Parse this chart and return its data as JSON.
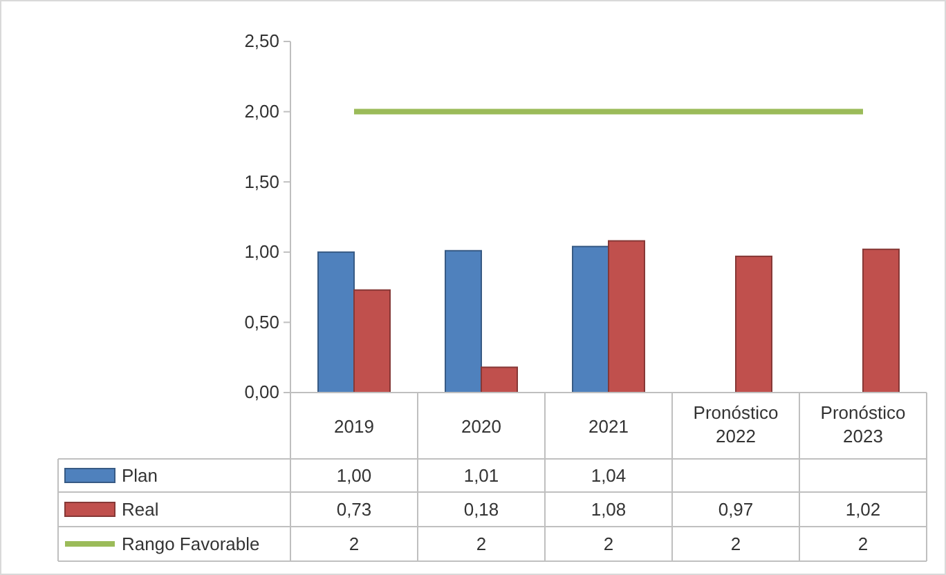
{
  "chart_data": {
    "type": "bar",
    "categories": [
      "2019",
      "2020",
      "2021",
      "Pronóstico 2022",
      "Pronóstico 2023"
    ],
    "series": [
      {
        "name": "Plan",
        "color": "#4f81bd",
        "values": [
          1.0,
          1.01,
          1.04,
          null,
          null
        ],
        "value_labels": [
          "1,00",
          "1,01",
          "1,04",
          null,
          null
        ]
      },
      {
        "name": "Real",
        "color": "#c0504d",
        "values": [
          0.73,
          0.18,
          1.08,
          0.97,
          1.02
        ],
        "value_labels": [
          "0,73",
          "0,18",
          "1,08",
          "0,97",
          "1,02"
        ]
      },
      {
        "name": "Rango Favorable",
        "type": "line",
        "color": "#9bbb59",
        "values": [
          2,
          2,
          2,
          2,
          2
        ],
        "value_labels": [
          "2",
          "2",
          "2",
          "2",
          "2"
        ]
      }
    ],
    "ylim": [
      0,
      2.5
    ],
    "yticks": [
      {
        "value": 0,
        "label": "0,00"
      },
      {
        "value": 0.5,
        "label": "0,50"
      },
      {
        "value": 1,
        "label": "1,00"
      },
      {
        "value": 1.5,
        "label": "1,50"
      },
      {
        "value": 2,
        "label": "2,00"
      },
      {
        "value": 2.5,
        "label": "2,50"
      }
    ],
    "grid": false,
    "legend": "bottom"
  }
}
